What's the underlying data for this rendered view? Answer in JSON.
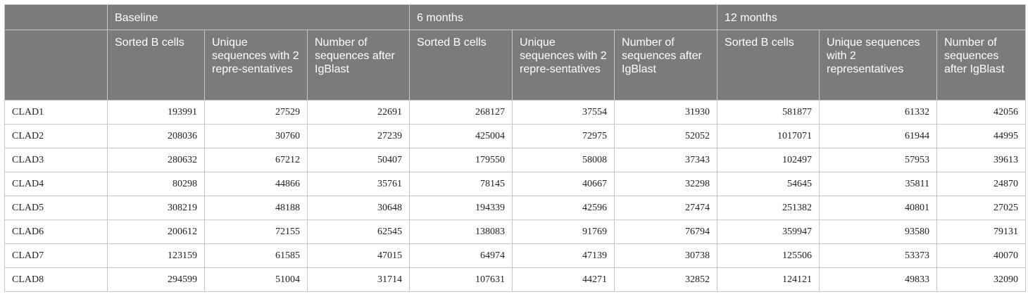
{
  "table": {
    "groups": [
      "Baseline",
      "6 months",
      "12 months"
    ],
    "subheaders": [
      "Sorted B cells",
      "Unique sequences with 2 repre-sentatives",
      "Number of sequences after IgBlast",
      "Sorted B cells",
      "Unique sequences with 2 repre-sentatives",
      "Number of sequences after IgBlast",
      "Sorted B cells",
      "Unique sequences with 2 representatives",
      "Number of sequences after IgBlast"
    ],
    "rows": [
      {
        "label": "CLAD1",
        "values": [
          "193991",
          "27529",
          "22691",
          "268127",
          "37554",
          "31930",
          "581877",
          "61332",
          "42056"
        ]
      },
      {
        "label": "CLAD2",
        "values": [
          "208036",
          "30760",
          "27239",
          "425004",
          "72975",
          "52052",
          "1017071",
          "61944",
          "44995"
        ]
      },
      {
        "label": "CLAD3",
        "values": [
          "280632",
          "67212",
          "50407",
          "179550",
          "58008",
          "37343",
          "102497",
          "57953",
          "39613"
        ]
      },
      {
        "label": "CLAD4",
        "values": [
          "80298",
          "44866",
          "35761",
          "78145",
          "40667",
          "32298",
          "54645",
          "35811",
          "24870"
        ]
      },
      {
        "label": "CLAD5",
        "values": [
          "308219",
          "48188",
          "30648",
          "194339",
          "42596",
          "27474",
          "251382",
          "40801",
          "27025"
        ]
      },
      {
        "label": "CLAD6",
        "values": [
          "200612",
          "72155",
          "62545",
          "138083",
          "91769",
          "76794",
          "359947",
          "93580",
          "79131"
        ]
      },
      {
        "label": "CLAD7",
        "values": [
          "123159",
          "61585",
          "47015",
          "64974",
          "47139",
          "30738",
          "125506",
          "53373",
          "40070"
        ]
      },
      {
        "label": "CLAD8",
        "values": [
          "294599",
          "51004",
          "31714",
          "107631",
          "44271",
          "32852",
          "124121",
          "49833",
          "32090"
        ]
      }
    ]
  }
}
